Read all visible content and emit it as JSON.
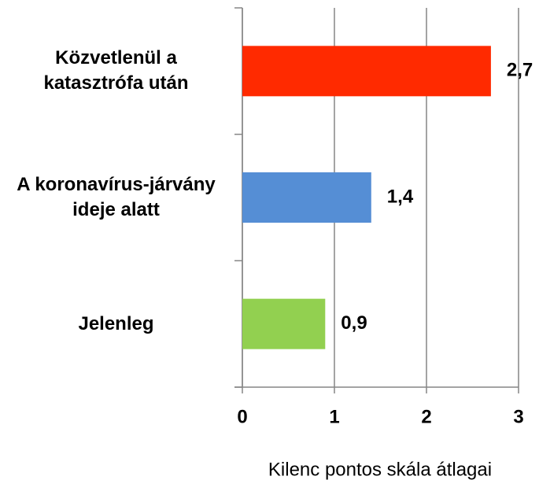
{
  "chart_data": {
    "type": "hbar",
    "categories": [
      "Közvetlenül a katasztrófa után",
      "A koronavírus-járvány ideje alatt",
      "Jelenleg"
    ],
    "values": [
      2.7,
      1.4,
      0.9
    ],
    "value_labels": [
      "2,7",
      "1,4",
      "0,9"
    ],
    "colors": [
      "#ff2a00",
      "#558ed5",
      "#92d050"
    ],
    "xlim": [
      0,
      3
    ],
    "xticks": [
      0,
      1,
      2,
      3
    ],
    "grid": true,
    "x_label": "Kilenc pontos skála átlagai"
  }
}
